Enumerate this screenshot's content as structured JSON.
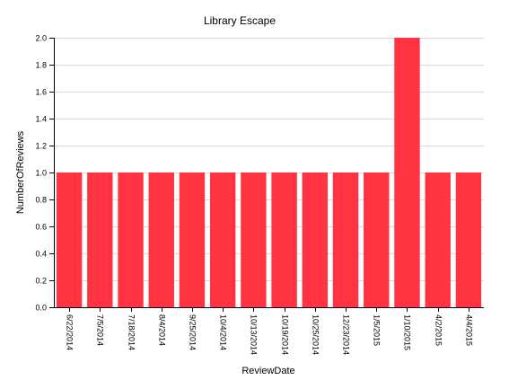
{
  "chart_data": {
    "type": "bar",
    "title": "Library Escape",
    "xlabel": "ReviewDate",
    "ylabel": "NumberOfReviews",
    "ylim": [
      0,
      2.0
    ],
    "yticks": [
      "0.0",
      "0.2",
      "0.4",
      "0.6",
      "0.8",
      "1.0",
      "1.2",
      "1.4",
      "1.6",
      "1.8",
      "2.0"
    ],
    "grid": true,
    "categories": [
      "6/22/2014",
      "7/5/2014",
      "7/18/2014",
      "8/4/2014",
      "9/25/2014",
      "10/4/2014",
      "10/13/2014",
      "10/19/2014",
      "10/25/2014",
      "12/23/2014",
      "1/5/2015",
      "1/10/2015",
      "4/2/2015",
      "4/4/2015"
    ],
    "values": [
      1,
      1,
      1,
      1,
      1,
      1,
      1,
      1,
      1,
      1,
      1,
      2,
      1,
      1
    ],
    "bar_color": "#ff3341"
  }
}
